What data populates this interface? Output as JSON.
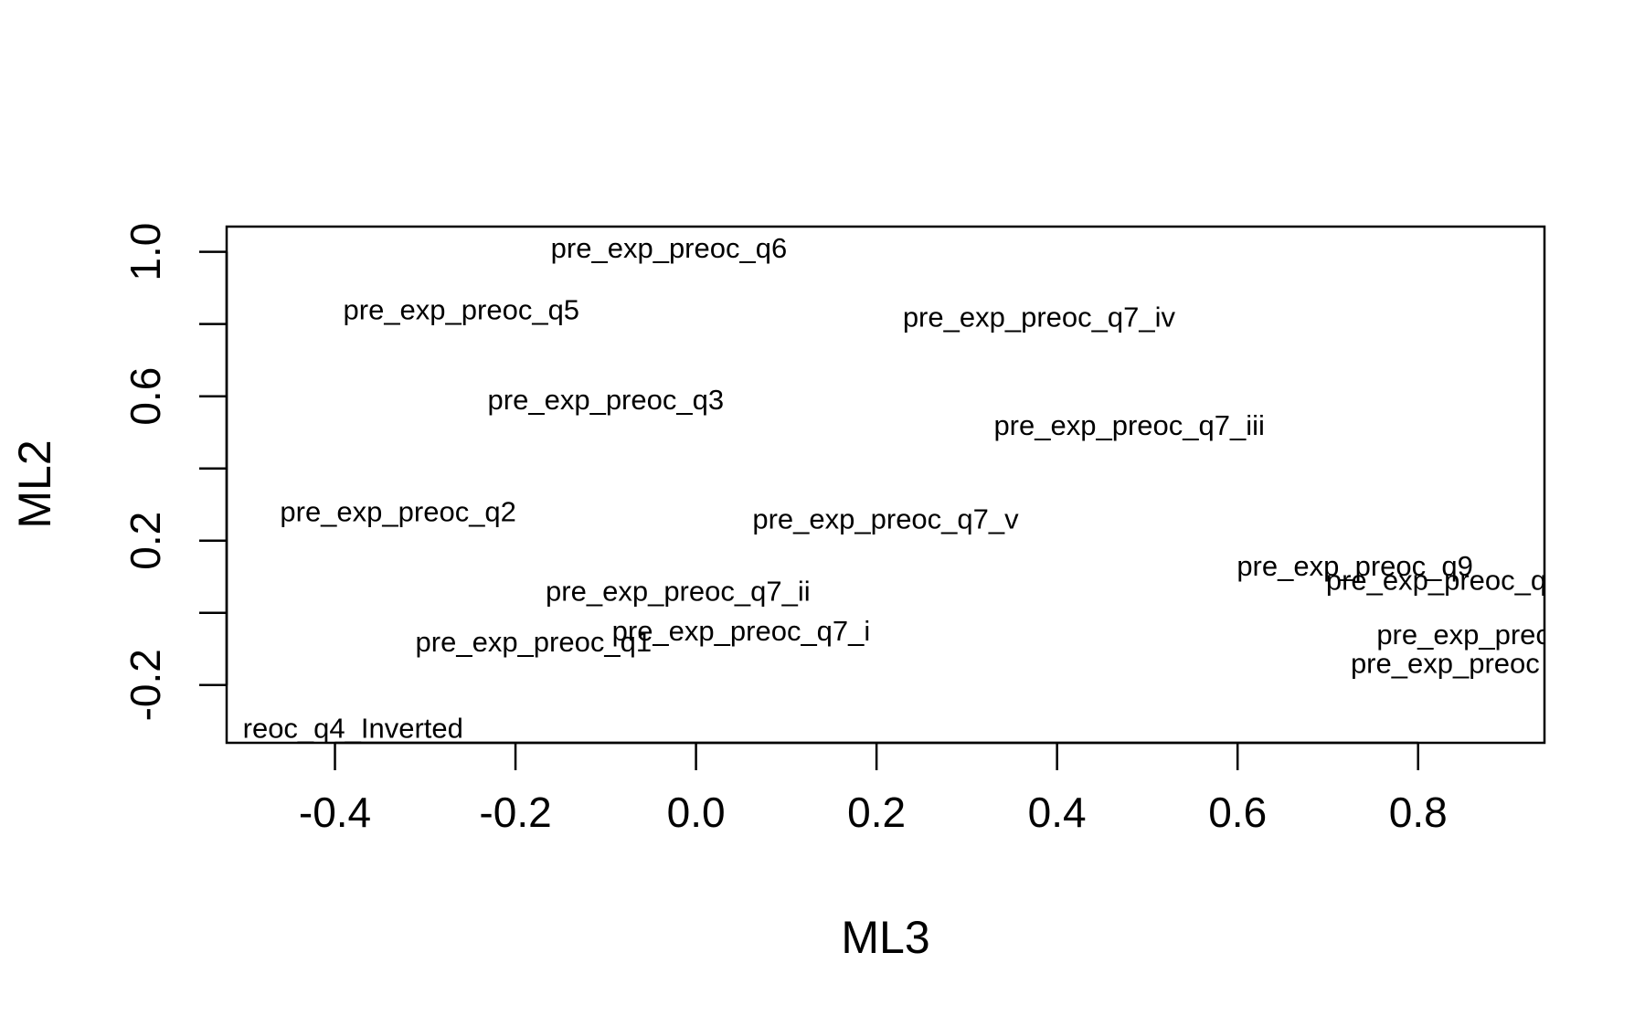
{
  "chart_data": {
    "type": "scatter",
    "title": "",
    "xlabel": "ML3",
    "ylabel": "ML2",
    "xlim": [
      -0.52,
      0.94
    ],
    "ylim": [
      -0.36,
      1.07
    ],
    "x_ticks": [
      -0.4,
      -0.2,
      0.0,
      0.2,
      0.4,
      0.6,
      0.8
    ],
    "x_tick_labels": [
      "-0.4",
      "-0.2",
      "0.0",
      "0.2",
      "0.4",
      "0.6",
      "0.8"
    ],
    "y_ticks": [
      -0.2,
      0.0,
      0.2,
      0.4,
      0.6,
      0.8,
      1.0
    ],
    "y_tick_labels": [
      "-0.2",
      "",
      "0.2",
      "",
      "0.6",
      "",
      "1.0"
    ],
    "grid": false,
    "legend": "none",
    "points": [
      {
        "label": "pre_exp_preoc_q6",
        "x": -0.03,
        "y": 1.01
      },
      {
        "label": "pre_exp_preoc_q5",
        "x": -0.26,
        "y": 0.84
      },
      {
        "label": "pre_exp_preoc_q7_iv",
        "x": 0.38,
        "y": 0.82
      },
      {
        "label": "pre_exp_preoc_q3",
        "x": -0.1,
        "y": 0.59
      },
      {
        "label": "pre_exp_preoc_q7_iii",
        "x": 0.48,
        "y": 0.52
      },
      {
        "label": "pre_exp_preoc_q2",
        "x": -0.33,
        "y": 0.28
      },
      {
        "label": "pre_exp_preoc_q7_v",
        "x": 0.21,
        "y": 0.26
      },
      {
        "label": "pre_exp_preoc_q9",
        "x": 0.73,
        "y": 0.13
      },
      {
        "label": "pre_exp_preoc_q",
        "x": 0.82,
        "y": 0.09
      },
      {
        "label": "pre_exp_preoc_q7_ii",
        "x": -0.02,
        "y": 0.06
      },
      {
        "label": "pre_exp_preoc_q7_i",
        "x": 0.05,
        "y": -0.05
      },
      {
        "label": "pre_exp_preoc_q1",
        "x": -0.18,
        "y": -0.08
      },
      {
        "label": "pre_exp_prec",
        "x": 0.85,
        "y": -0.06
      },
      {
        "label": "pre_exp_preoc",
        "x": 0.83,
        "y": -0.14
      },
      {
        "label": "reoc_q4_Inverted",
        "x": -0.38,
        "y": -0.32
      }
    ]
  }
}
